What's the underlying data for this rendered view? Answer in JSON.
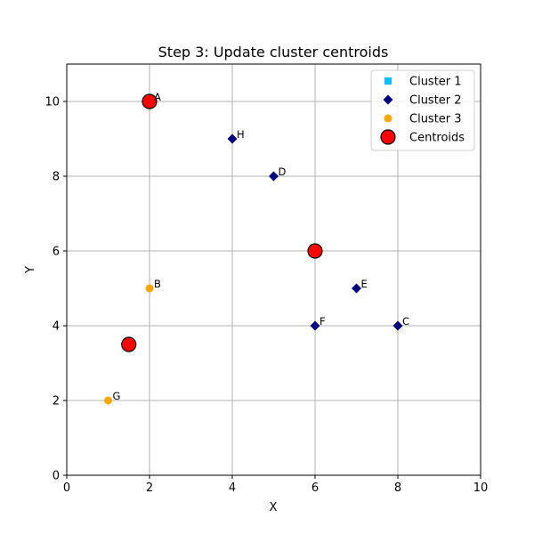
{
  "chart_data": {
    "type": "scatter",
    "title": "Step 3: Update cluster centroids",
    "xlabel": "X",
    "ylabel": "Y",
    "xlim": [
      0,
      10
    ],
    "ylim": [
      0,
      11
    ],
    "xticks": [
      0,
      2,
      4,
      6,
      8,
      10
    ],
    "yticks": [
      0,
      2,
      4,
      6,
      8,
      10
    ],
    "grid": true,
    "legend_position": "top-right",
    "series": [
      {
        "name": "Cluster 1",
        "marker": "square",
        "color": "#00bfff",
        "points": []
      },
      {
        "name": "Cluster 2",
        "marker": "diamond",
        "color": "#000080",
        "points": [
          {
            "label": "C",
            "x": 8,
            "y": 4
          },
          {
            "label": "D",
            "x": 5,
            "y": 8
          },
          {
            "label": "E",
            "x": 7,
            "y": 5
          },
          {
            "label": "F",
            "x": 6,
            "y": 4
          },
          {
            "label": "H",
            "x": 4,
            "y": 9
          }
        ]
      },
      {
        "name": "Cluster 3",
        "marker": "circle",
        "color": "#ffa500",
        "points": [
          {
            "label": "B",
            "x": 2,
            "y": 5
          },
          {
            "label": "G",
            "x": 1,
            "y": 2
          }
        ]
      },
      {
        "name": "Centroids",
        "marker": "big-circle",
        "color": "#ff0000",
        "edge_color": "#000000",
        "points": [
          {
            "label": "A",
            "x": 2,
            "y": 10
          },
          {
            "label": "",
            "x": 6,
            "y": 6
          },
          {
            "label": "",
            "x": 1.5,
            "y": 3.5
          }
        ]
      }
    ]
  }
}
